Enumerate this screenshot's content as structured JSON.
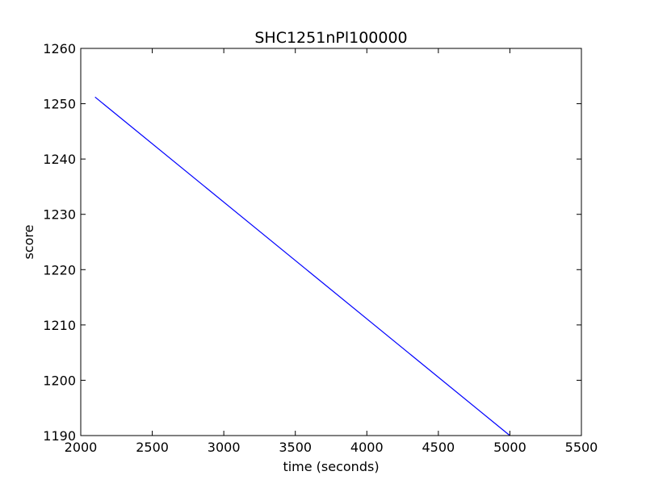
{
  "chart_data": {
    "type": "line",
    "title": "SHC1251nPl100000",
    "xlabel": "time (seconds)",
    "ylabel": "score",
    "xlim": [
      2000,
      5500
    ],
    "ylim": [
      1190,
      1260
    ],
    "xticks": [
      2000,
      2500,
      3000,
      3500,
      4000,
      4500,
      5000,
      5500
    ],
    "yticks": [
      1190,
      1200,
      1210,
      1220,
      1230,
      1240,
      1250,
      1260
    ],
    "grid": false,
    "series": [
      {
        "color": "#0000ff",
        "x": [
          2100,
          5000
        ],
        "y": [
          1251.2,
          1190.0
        ]
      }
    ]
  }
}
